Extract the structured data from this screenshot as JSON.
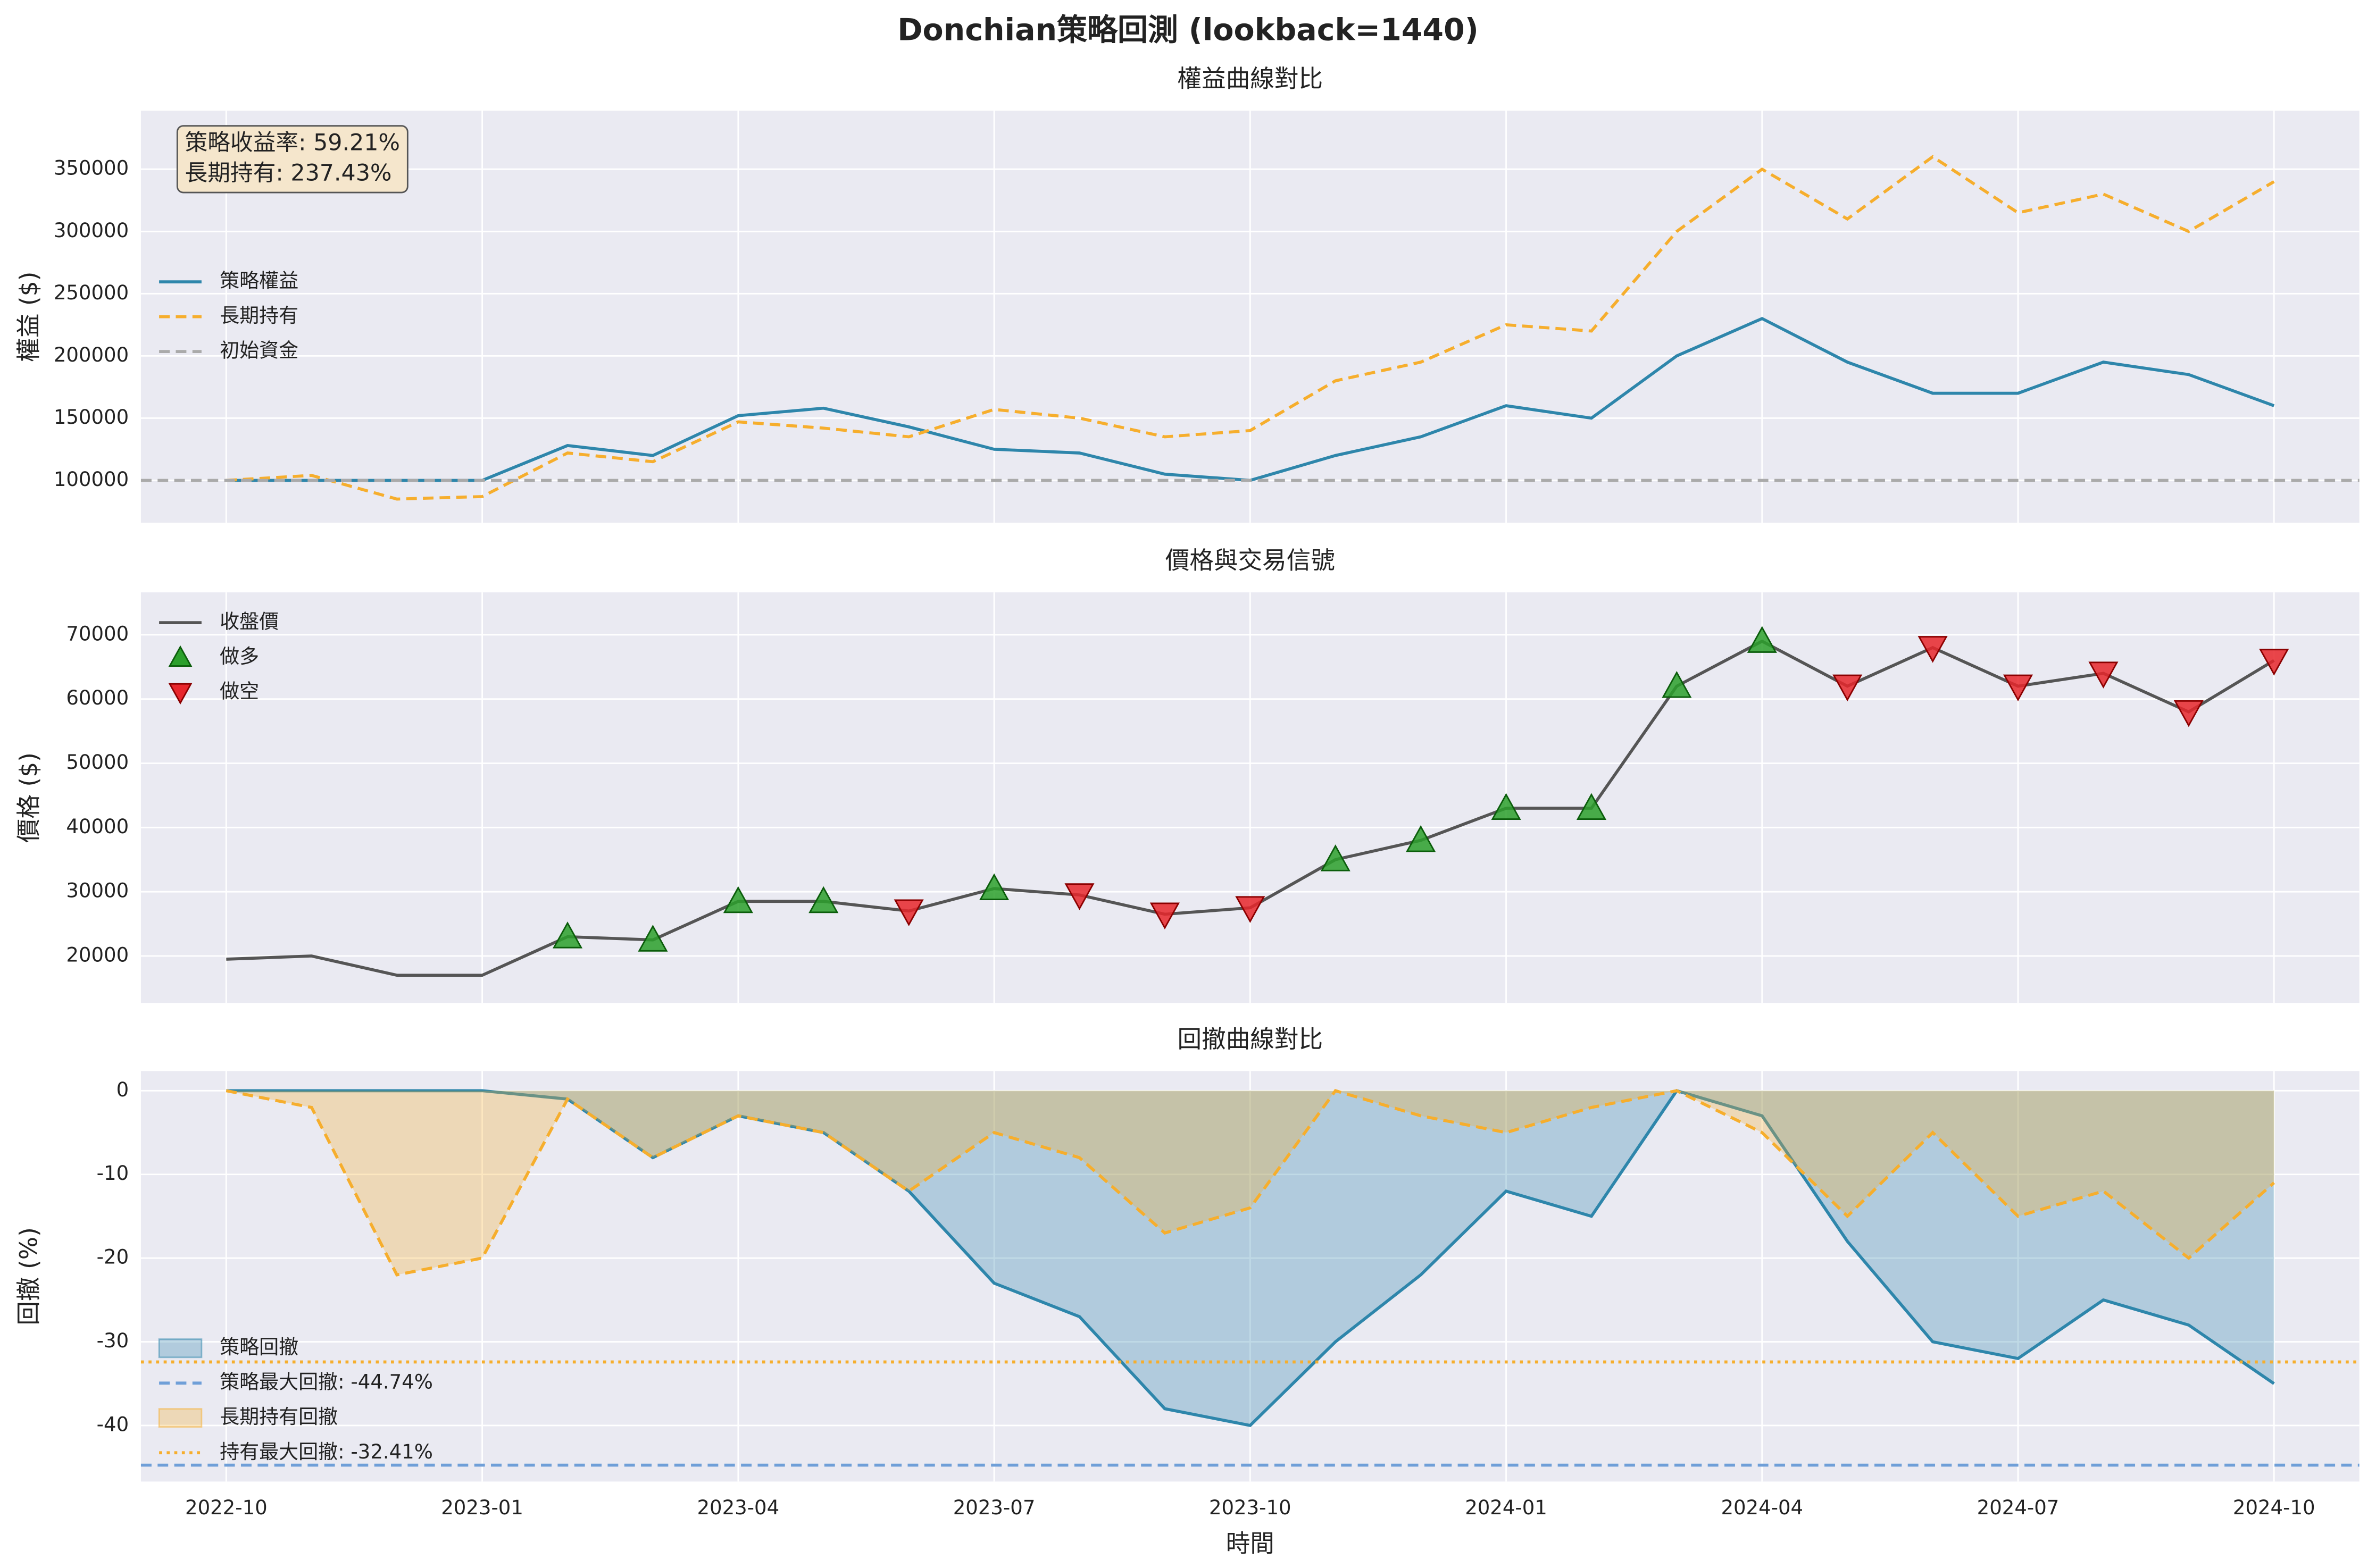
{
  "title": "Donchian策略回測 (lookback=1440)",
  "chart_data": [
    {
      "type": "line",
      "title": "權益曲線對比",
      "ylabel": "權益 ($)",
      "legend": "center left",
      "annotation": [
        "策略收益率: 59.21%",
        "長期持有: 237.43%"
      ],
      "x": [
        "2022-10",
        "2022-11",
        "2022-12",
        "2023-01",
        "2023-02",
        "2023-03",
        "2023-04",
        "2023-05",
        "2023-06",
        "2023-07",
        "2023-08",
        "2023-09",
        "2023-10",
        "2023-11",
        "2023-12",
        "2024-01",
        "2024-02",
        "2024-03",
        "2024-04",
        "2024-05",
        "2024-06",
        "2024-07",
        "2024-08",
        "2024-09",
        "2024-10"
      ],
      "xlim": [
        "2022-09",
        "2024-11"
      ],
      "xticks": [
        "2022-10",
        "2023-01",
        "2023-04",
        "2023-07",
        "2023-10",
        "2024-01",
        "2024-04",
        "2024-07",
        "2024-10"
      ],
      "ylim": [
        66000,
        397000
      ],
      "yticks": [
        100000,
        150000,
        200000,
        250000,
        300000,
        350000
      ],
      "grid": true,
      "series": [
        {
          "name": "策略權益",
          "kind": "line",
          "color": "#2e86ab",
          "values": [
            100000,
            100000,
            100000,
            100000,
            128000,
            120000,
            152000,
            158000,
            143000,
            125000,
            122000,
            105000,
            100000,
            120000,
            135000,
            160000,
            150000,
            200000,
            230000,
            195000,
            170000,
            170000,
            195000,
            185000,
            160000
          ]
        },
        {
          "name": "長期持有",
          "kind": "line",
          "dash": "dashed",
          "color": "#f6ae2d",
          "values": [
            100000,
            104000,
            85000,
            87000,
            122000,
            115000,
            147000,
            142000,
            135000,
            157000,
            150000,
            135000,
            140000,
            180000,
            195000,
            225000,
            220000,
            300000,
            350000,
            310000,
            360000,
            315000,
            330000,
            300000,
            340000
          ]
        },
        {
          "name": "初始資金",
          "kind": "hline",
          "dash": "dashed",
          "color": "#aaaaaa",
          "value": 100000
        }
      ]
    },
    {
      "type": "line",
      "title": "價格與交易信號",
      "ylabel": "價格 ($)",
      "legend": "upper left",
      "x": [
        "2022-10",
        "2022-11",
        "2022-12",
        "2023-01",
        "2023-02",
        "2023-03",
        "2023-04",
        "2023-05",
        "2023-06",
        "2023-07",
        "2023-08",
        "2023-09",
        "2023-10",
        "2023-11",
        "2023-12",
        "2024-01",
        "2024-02",
        "2024-03",
        "2024-04",
        "2024-05",
        "2024-06",
        "2024-07",
        "2024-08",
        "2024-09",
        "2024-10"
      ],
      "xlim": [
        "2022-09",
        "2024-11"
      ],
      "xticks": [
        "2022-10",
        "2023-01",
        "2023-04",
        "2023-07",
        "2023-10",
        "2024-01",
        "2024-04",
        "2024-07",
        "2024-10"
      ],
      "ylim": [
        12700,
        76600
      ],
      "yticks": [
        20000,
        30000,
        40000,
        50000,
        60000,
        70000
      ],
      "grid": true,
      "series": [
        {
          "name": "收盤價",
          "kind": "line",
          "color": "#555555",
          "values": [
            19500,
            20000,
            17000,
            17000,
            23000,
            22500,
            28500,
            28500,
            27000,
            30500,
            29500,
            26500,
            27500,
            35000,
            38000,
            43000,
            43000,
            62000,
            69000,
            62000,
            68000,
            62000,
            64000,
            58000,
            66000
          ]
        },
        {
          "name": "做多",
          "kind": "marker-up",
          "color": "#2ca02c",
          "values": [
            null,
            null,
            null,
            null,
            23000,
            22500,
            28500,
            28500,
            null,
            30500,
            null,
            null,
            null,
            35000,
            38000,
            43000,
            43000,
            62000,
            69000,
            null,
            null,
            null,
            null,
            null,
            null
          ]
        },
        {
          "name": "做空",
          "kind": "marker-down",
          "color": "#e8272c",
          "values": [
            null,
            null,
            null,
            null,
            null,
            null,
            null,
            null,
            27000,
            null,
            29500,
            26500,
            27500,
            null,
            null,
            null,
            null,
            null,
            null,
            62000,
            68000,
            62000,
            64000,
            58000,
            66000
          ]
        }
      ]
    },
    {
      "type": "area",
      "title": "回撤曲線對比",
      "ylabel": "回撤 (%)",
      "xlabel": "時間",
      "legend": "lower left",
      "x": [
        "2022-10",
        "2022-11",
        "2022-12",
        "2023-01",
        "2023-02",
        "2023-03",
        "2023-04",
        "2023-05",
        "2023-06",
        "2023-07",
        "2023-08",
        "2023-09",
        "2023-10",
        "2023-11",
        "2023-12",
        "2024-01",
        "2024-02",
        "2024-03",
        "2024-04",
        "2024-05",
        "2024-06",
        "2024-07",
        "2024-08",
        "2024-09",
        "2024-10"
      ],
      "xlim": [
        "2022-09",
        "2024-11"
      ],
      "xticks": [
        "2022-10",
        "2023-01",
        "2023-04",
        "2023-07",
        "2023-10",
        "2024-01",
        "2024-04",
        "2024-07",
        "2024-10"
      ],
      "ylim": [
        -46.7,
        2.35
      ],
      "yticks": [
        0,
        -10,
        -20,
        -30,
        -40
      ],
      "grid": true,
      "series": [
        {
          "name": "策略回撤",
          "kind": "area",
          "color": "#2e86ab",
          "values": [
            0,
            0,
            0,
            0,
            -1,
            -8,
            -3,
            -5,
            -12,
            -23,
            -27,
            -38,
            -40,
            -30,
            -22,
            -12,
            -15,
            0,
            -3,
            -18,
            -30,
            -32,
            -25,
            -28,
            -35
          ]
        },
        {
          "name": "策略最大回撤: -44.74%",
          "kind": "hline",
          "dash": "dashed",
          "color": "#6f9fd8",
          "value": -44.74
        },
        {
          "name": "長期持有回撤",
          "kind": "area",
          "dash": "dashed",
          "color": "#f6ae2d",
          "values": [
            0,
            -2,
            -22,
            -20,
            -1,
            -8,
            -3,
            -5,
            -12,
            -5,
            -8,
            -17,
            -14,
            0,
            -3,
            -5,
            -2,
            0,
            -5,
            -15,
            -5,
            -15,
            -12,
            -20,
            -11
          ]
        },
        {
          "name": "持有最大回撤: -32.41%",
          "kind": "hline",
          "dash": "dotted",
          "color": "#f6ae2d",
          "value": -32.41
        }
      ]
    }
  ]
}
